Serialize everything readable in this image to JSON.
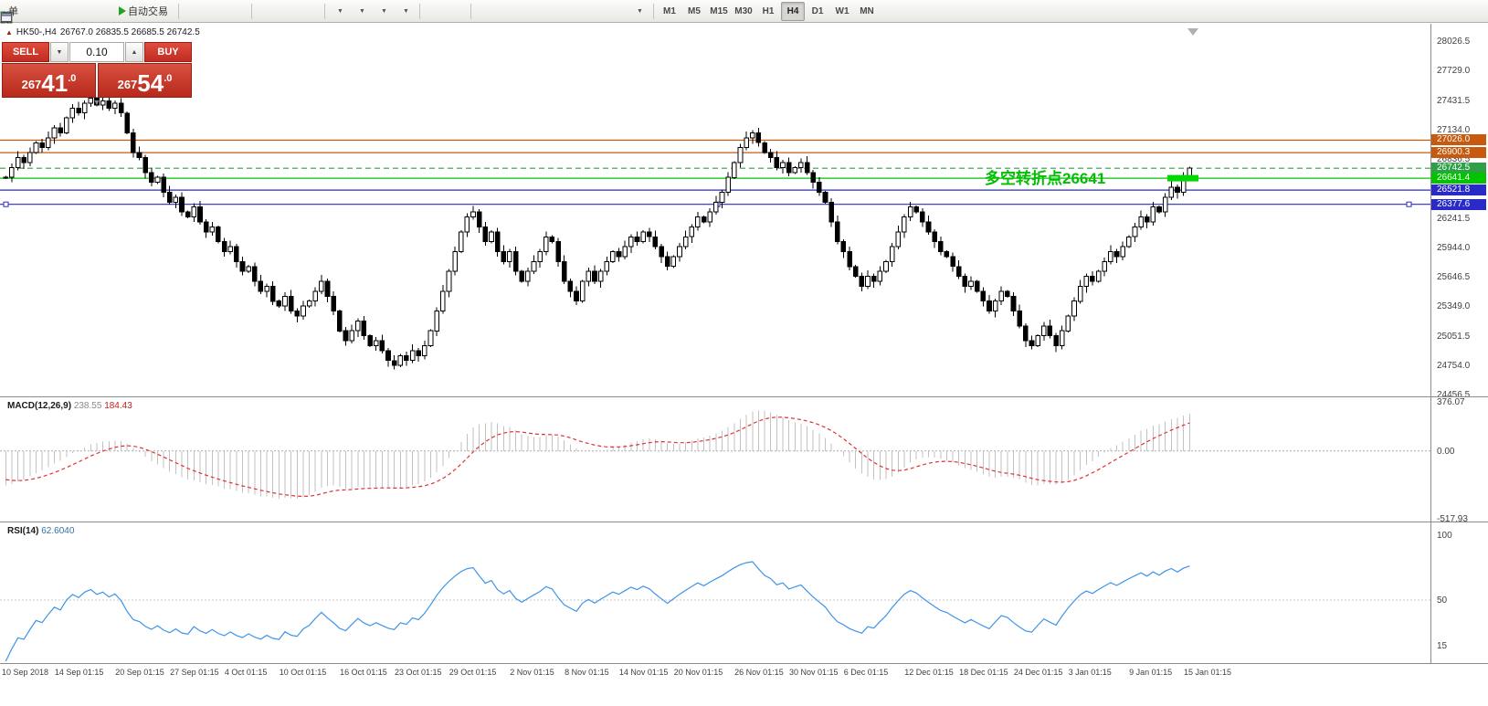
{
  "toolbar": {
    "new_order_label": "单",
    "autotrading_label": "自动交易",
    "timeframes": [
      "M1",
      "M5",
      "M15",
      "M30",
      "H1",
      "H4",
      "D1",
      "W1",
      "MN"
    ],
    "active_timeframe": "H4"
  },
  "icons": {
    "fib_glyph": "F",
    "text_glyph": "A",
    "label_glyph": "T"
  },
  "symbol_info": {
    "symbol": "HK50-,H4",
    "ohlc": "26767.0 26835.5 26685.5 26742.5"
  },
  "trade_panel": {
    "sell_label": "SELL",
    "buy_label": "BUY",
    "volume": "0.10",
    "sell_price_full": "26741.0",
    "buy_price_full": "26754.0",
    "sell_prefix": "267",
    "sell_big": "41",
    "sell_dec": ".0",
    "buy_prefix": "267",
    "buy_big": "54",
    "buy_dec": ".0",
    "step_up": "▲",
    "step_down": "▼",
    "collapse": "▼"
  },
  "chart_data": {
    "type": "candlestick",
    "symbol": "HK50-",
    "period": "H4",
    "ohlc_current": {
      "open": 26767.0,
      "high": 26835.5,
      "low": 26685.5,
      "close": 26742.5
    },
    "price_axis_labels": [
      "28026.5",
      "27729.0",
      "27431.5",
      "27134.0",
      "26836.5",
      "26539.0",
      "26241.5",
      "25944.0",
      "25646.5",
      "25349.0",
      "25051.5",
      "24754.0",
      "24456.5"
    ],
    "price_axis": {
      "max": 28026.5,
      "min": 24456.5,
      "step": 297.5
    },
    "hlines": [
      {
        "price": 27026.0,
        "label": "27026.0",
        "color": "#c85a10",
        "style": "solid"
      },
      {
        "price": 26900.3,
        "label": "26900.3",
        "color": "#c85a10",
        "style": "solid"
      },
      {
        "price": 26742.5,
        "label": "26742.5",
        "color": "#2fa048",
        "style": "dash"
      },
      {
        "price": 26641.4,
        "label": "26641.4",
        "color": "#00c400",
        "style": "solid"
      },
      {
        "price": 26521.8,
        "label": "26521.8",
        "color": "#2a2ac8",
        "style": "solid"
      },
      {
        "price": 26377.6,
        "label": "26377.6",
        "color": "#2a2ac8",
        "style": "solid"
      }
    ],
    "highlight": {
      "price": 26641.4,
      "color": "#00d800"
    },
    "annotation": {
      "text": "多空转折点26641",
      "color": "#00be00"
    },
    "time_labels": [
      "10 Sep 2018",
      "14 Sep 01:15",
      "20 Sep 01:15",
      "27 Sep 01:15",
      "4 Oct 01:15",
      "10 Oct 01:15",
      "16 Oct 01:15",
      "23 Oct 01:15",
      "29 Oct 01:15",
      "2 Nov 01:15",
      "8 Nov 01:15",
      "14 Nov 01:15",
      "20 Nov 01:15",
      "26 Nov 01:15",
      "30 Nov 01:15",
      "6 Dec 01:15",
      "12 Dec 01:15",
      "18 Dec 01:15",
      "24 Dec 01:15",
      "3 Jan 01:15",
      "9 Jan 01:15",
      "15 Jan 01:15"
    ],
    "indicator_seed": [
      27650,
      27550,
      27450,
      27350,
      27250,
      27150,
      27050,
      26950,
      26850,
      26750,
      26700,
      26650,
      26620,
      26640,
      26650
    ],
    "closes": [
      26650,
      26750,
      26850,
      26800,
      26900,
      27000,
      26950,
      27050,
      27150,
      27100,
      27250,
      27350,
      27300,
      27400,
      27450,
      27380,
      27420,
      27350,
      27400,
      27300,
      27100,
      26900,
      26850,
      26700,
      26600,
      26650,
      26500,
      26400,
      26450,
      26300,
      26250,
      26350,
      26200,
      26100,
      26150,
      26000,
      25900,
      25950,
      25800,
      25700,
      25750,
      25600,
      25500,
      25550,
      25400,
      25350,
      25450,
      25300,
      25250,
      25350,
      25400,
      25500,
      25600,
      25450,
      25300,
      25100,
      25000,
      25100,
      25200,
      25050,
      24950,
      25000,
      24900,
      24800,
      24750,
      24850,
      24800,
      24900,
      24850,
      24950,
      25100,
      25300,
      25500,
      25700,
      25900,
      26100,
      26250,
      26300,
      26150,
      26000,
      26100,
      25900,
      25800,
      25900,
      25700,
      25600,
      25700,
      25800,
      25900,
      26050,
      26000,
      25800,
      25600,
      25500,
      25400,
      25600,
      25700,
      25600,
      25700,
      25800,
      25900,
      25850,
      25950,
      26050,
      26000,
      26100,
      26050,
      25950,
      25850,
      25750,
      25850,
      25950,
      26050,
      26150,
      26250,
      26200,
      26300,
      26400,
      26500,
      26650,
      26800,
      26950,
      27050,
      27100,
      27000,
      26900,
      26850,
      26750,
      26800,
      26700,
      26750,
      26800,
      26700,
      26600,
      26500,
      26400,
      26200,
      26000,
      25900,
      25750,
      25650,
      25550,
      25650,
      25600,
      25700,
      25800,
      25950,
      26100,
      26250,
      26350,
      26300,
      26200,
      26100,
      26000,
      25900,
      25850,
      25750,
      25650,
      25550,
      25600,
      25500,
      25400,
      25300,
      25400,
      25500,
      25450,
      25300,
      25150,
      25000,
      24950,
      25050,
      25150,
      25050,
      24950,
      25100,
      25250,
      25400,
      25550,
      25650,
      25600,
      25700,
      25800,
      25900,
      25850,
      25950,
      26050,
      26150,
      26250,
      26200,
      26350,
      26300,
      26450,
      26550,
      26500,
      26650,
      26742.5
    ],
    "macd": {
      "label": "MACD(12,26,9)",
      "value_macd": "238.55",
      "value_signal": "184.43",
      "fast": 12,
      "slow": 26,
      "signal": 9,
      "scale_labels": [
        "376.07",
        "0.00",
        "-517.93"
      ],
      "scale_values": [
        376.07,
        0,
        -517.93
      ]
    },
    "rsi": {
      "label": "RSI(14)",
      "value": "62.6040",
      "period": 14,
      "scale_labels": [
        "100",
        "50",
        "15"
      ],
      "scale_values": [
        100,
        50,
        15
      ]
    }
  }
}
